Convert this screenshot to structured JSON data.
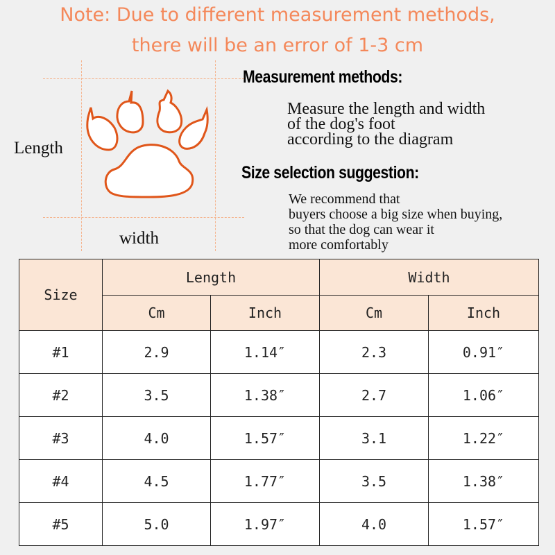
{
  "note": {
    "line1": "Note: Due to different measurement methods,",
    "line2": "there will be an error of 1-3 cm",
    "color": "#f4885a"
  },
  "diagram": {
    "length_label": "Length",
    "width_label": "width",
    "icon": "paw-icon",
    "outline_color": "#e0561a"
  },
  "measurement": {
    "heading": "Measurement methods:",
    "lines": [
      "Measure the length and width",
      "of the dog's foot",
      "according to the diagram"
    ]
  },
  "suggestion": {
    "heading": "Size selection suggestion:",
    "lines": [
      "We recommend that",
      "buyers choose a big size when buying,",
      "so that the dog can wear it",
      "more comfortably"
    ]
  },
  "table": {
    "size_header": "Size",
    "length_header": "Length",
    "width_header": "Width",
    "sub_headers": [
      "Cm",
      "Inch",
      "Cm",
      "Inch"
    ],
    "header_bg": "#fbe6d6",
    "rows": [
      [
        "#1",
        "2.9",
        "1.14″",
        "2.3",
        "0.91″"
      ],
      [
        "#2",
        "3.5",
        "1.38″",
        "2.7",
        "1.06″"
      ],
      [
        "#3",
        "4.0",
        "1.57″",
        "3.1",
        "1.22″"
      ],
      [
        "#4",
        "4.5",
        "1.77″",
        "3.5",
        "1.38″"
      ],
      [
        "#5",
        "5.0",
        "1.97″",
        "4.0",
        "1.57″"
      ]
    ]
  }
}
